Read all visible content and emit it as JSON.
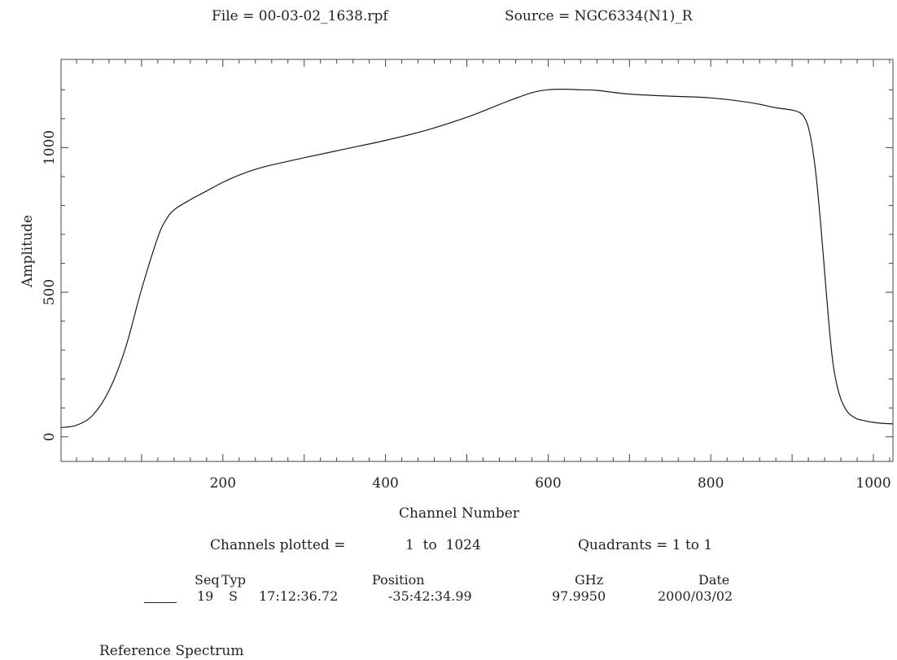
{
  "header": {
    "file_text": "File = 00-03-02_1638.rpf",
    "source_text": "Source = NGC6334(N1)_R"
  },
  "footer": {
    "channels_label": "Channels plotted =",
    "channels_range": "1  to  1024",
    "quadrants_text": "Quadrants = 1 to 1",
    "table_headers": [
      "Seq",
      "Typ",
      "Position",
      "GHz",
      "Date"
    ],
    "row": {
      "seq": "19",
      "typ": "S",
      "ra": "17:12:36.72",
      "dec": "-35:42:34.99",
      "ghz": "97.9950",
      "date": "2000/03/02"
    },
    "caption": "Reference Spectrum"
  },
  "chart_data": {
    "type": "line",
    "title": "",
    "xlabel": "Channel Number",
    "ylabel": "Amplitude",
    "xlim": [
      1,
      1024
    ],
    "ylim": [
      -85,
      1305
    ],
    "x_ticks": [
      200,
      400,
      600,
      800,
      1000
    ],
    "y_ticks": [
      0,
      500,
      1000
    ],
    "grid": false,
    "line_color": "#1a1a1a",
    "series": [
      {
        "x": [
          1,
          20,
          40,
          60,
          80,
          100,
          120,
          130,
          140,
          160,
          180,
          200,
          220,
          240,
          260,
          300,
          350,
          400,
          450,
          500,
          550,
          580,
          600,
          620,
          640,
          660,
          700,
          750,
          800,
          850,
          880,
          900,
          910,
          915,
          920,
          925,
          930,
          935,
          940,
          945,
          950,
          955,
          960,
          965,
          970,
          975,
          980,
          990,
          1000,
          1010,
          1024
        ],
        "y": [
          32,
          40,
          75,
          160,
          305,
          510,
          690,
          750,
          785,
          820,
          850,
          880,
          905,
          925,
          940,
          965,
          995,
          1025,
          1060,
          1105,
          1160,
          1190,
          1200,
          1202,
          1200,
          1198,
          1185,
          1178,
          1172,
          1155,
          1138,
          1130,
          1120,
          1105,
          1070,
          1000,
          890,
          740,
          570,
          400,
          260,
          180,
          130,
          100,
          80,
          70,
          62,
          55,
          50,
          47,
          45
        ]
      }
    ]
  }
}
